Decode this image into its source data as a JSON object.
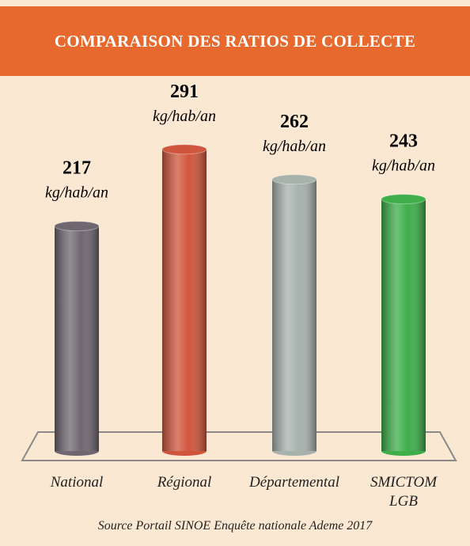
{
  "chart_data": {
    "type": "bar",
    "title": "COMPARAISON DES RATIOS DE COLLECTE",
    "categories": [
      "National",
      "Régional",
      "Départemental",
      "SMICTOM LGB"
    ],
    "values": [
      217,
      291,
      262,
      243
    ],
    "colors": [
      "#6f6770",
      "#d0553d",
      "#a7b2ad",
      "#3dae49"
    ],
    "unit": "kg/hab/an",
    "source": "Source Portail SINOE Enquête nationale Ademe 2017"
  }
}
